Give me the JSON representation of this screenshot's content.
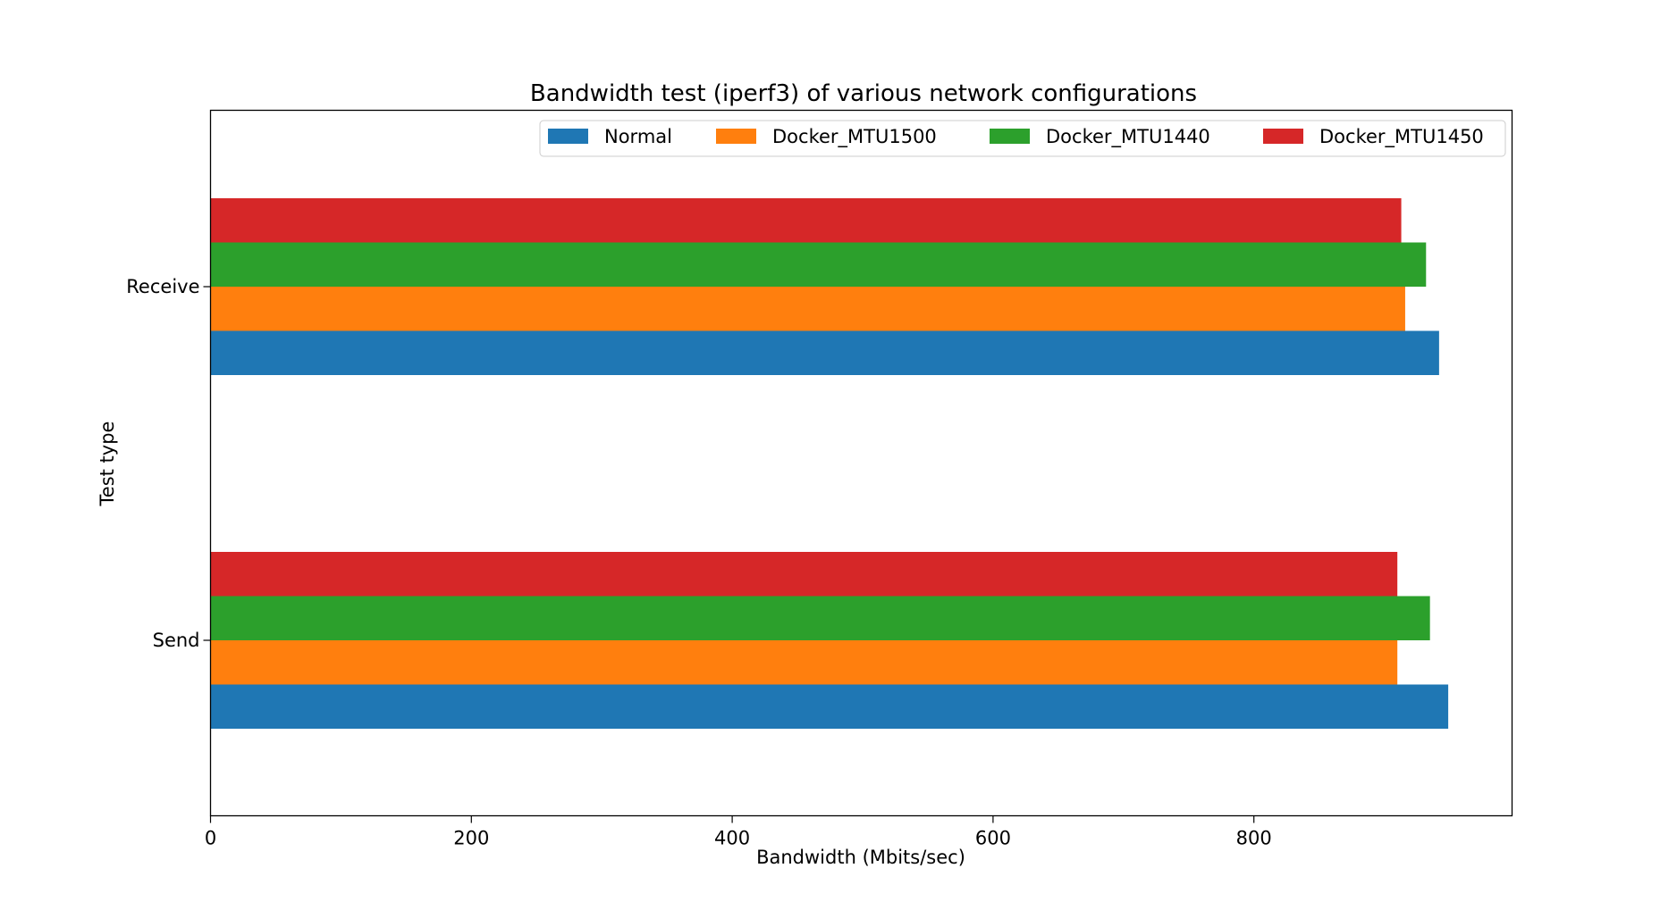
{
  "chart_data": {
    "type": "bar",
    "orientation": "horizontal",
    "title": "Bandwidth test (iperf3) of various network configurations",
    "xlabel": "Bandwidth (Mbits/sec)",
    "ylabel": "Test type",
    "categories": [
      "Send",
      "Receive"
    ],
    "xlim": [
      0,
      1000
    ],
    "xticks": [
      "0",
      "200",
      "400",
      "600",
      "800"
    ],
    "grid": false,
    "legend_position": "top-right",
    "series": [
      {
        "name": "Normal",
        "color": "#1f77b4",
        "values": [
          949,
          942
        ]
      },
      {
        "name": "Docker_MTU1500",
        "color": "#ff7f0e",
        "values": [
          910,
          916
        ]
      },
      {
        "name": "Docker_MTU1440",
        "color": "#2ca02c",
        "values": [
          935,
          932
        ]
      },
      {
        "name": "Docker_MTU1450",
        "color": "#d62728",
        "values": [
          910,
          913
        ]
      }
    ]
  }
}
